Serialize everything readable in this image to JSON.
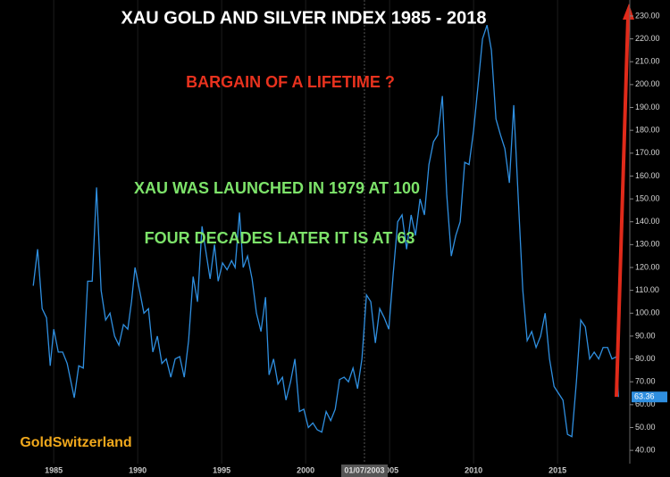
{
  "chart_data": {
    "type": "line",
    "title": "XAU GOLD AND SILVER INDEX   1985  - 2018",
    "annotations": [
      {
        "text": "BARGAIN OF A LIFETIME ?",
        "color": "#e8321e"
      },
      {
        "text": "XAU WAS LAUNCHED  IN 1979 AT 100",
        "color": "#7de36a"
      },
      {
        "text": "FOUR DECADES LATER IT IS AT 63",
        "color": "#7de36a"
      },
      {
        "text": "GoldSwitzerland",
        "color": "#f0a81c"
      }
    ],
    "crosshair": {
      "x": 2003.5,
      "label": "01/07/2003"
    },
    "series": [
      {
        "name": "XAU",
        "color": "#2f8fe0",
        "x": [
          1983.78,
          1984.04,
          1984.31,
          1984.57,
          1984.79,
          1985.0,
          1985.27,
          1985.53,
          1985.8,
          1986.22,
          1986.49,
          1986.76,
          1987.02,
          1987.29,
          1987.55,
          1987.82,
          1988.09,
          1988.35,
          1988.62,
          1988.88,
          1989.15,
          1989.41,
          1989.63,
          1989.84,
          1990.11,
          1990.37,
          1990.64,
          1990.9,
          1991.17,
          1991.44,
          1991.7,
          1991.97,
          1992.23,
          1992.5,
          1992.77,
          1993.03,
          1993.3,
          1993.56,
          1993.83,
          1994.1,
          1994.31,
          1994.57,
          1994.79,
          1995.05,
          1995.32,
          1995.59,
          1995.8,
          1996.06,
          1996.28,
          1996.54,
          1996.81,
          1997.07,
          1997.34,
          1997.61,
          1997.82,
          1998.09,
          1998.35,
          1998.62,
          1998.83,
          1999.1,
          1999.36,
          1999.63,
          1999.89,
          2000.16,
          2000.43,
          2000.69,
          2000.96,
          2001.22,
          2001.49,
          2001.76,
          2002.02,
          2002.29,
          2002.55,
          2002.82,
          2003.09,
          2003.35,
          2003.62,
          2003.88,
          2004.15,
          2004.41,
          2004.68,
          2004.95,
          2005.21,
          2005.48,
          2005.74,
          2006.01,
          2006.28,
          2006.54,
          2006.81,
          2007.07,
          2007.34,
          2007.61,
          2007.87,
          2008.14,
          2008.4,
          2008.67,
          2008.94,
          2009.2,
          2009.47,
          2009.73,
          2010.0,
          2010.27,
          2010.53,
          2010.8,
          2011.06,
          2011.33,
          2011.6,
          2011.86,
          2012.13,
          2012.39,
          2012.66,
          2012.93,
          2013.19,
          2013.46,
          2013.72,
          2013.99,
          2014.26,
          2014.52,
          2014.79,
          2015.05,
          2015.32,
          2015.59,
          2015.85,
          2016.12,
          2016.38,
          2016.65,
          2016.91,
          2017.18,
          2017.45,
          2017.71,
          2017.98,
          2018.24,
          2018.51,
          2018.62
        ],
        "values": [
          112,
          128,
          102,
          98,
          77,
          93,
          83,
          83,
          78,
          63,
          77,
          76,
          114,
          114,
          155,
          110,
          97,
          100,
          90,
          86,
          95,
          93,
          105,
          120,
          110,
          100,
          102,
          83,
          90,
          78,
          80,
          72,
          80,
          81,
          72,
          88,
          116,
          105,
          138,
          125,
          115,
          130,
          114,
          122,
          119,
          123,
          120,
          144,
          120,
          125,
          115,
          100,
          92,
          107,
          73,
          80,
          69,
          72,
          62,
          70,
          80,
          57,
          58,
          50,
          52,
          49,
          48,
          57,
          53,
          58,
          71,
          72,
          70,
          76,
          67,
          80,
          108,
          105,
          87,
          102,
          98,
          93,
          117,
          140,
          143,
          128,
          143,
          134,
          150,
          143,
          165,
          175,
          178,
          195,
          152,
          125,
          134,
          140,
          166,
          165,
          180,
          200,
          220,
          226,
          215,
          185,
          178,
          172,
          157,
          191,
          150,
          110,
          88,
          92,
          85,
          90,
          100,
          80,
          68,
          65,
          62,
          47,
          46,
          70,
          97,
          94,
          80,
          83,
          80,
          85,
          85,
          80,
          81,
          63.36
        ]
      }
    ],
    "xlim": [
      1981.8,
      2019.3
    ],
    "xticks": [
      1985,
      1990,
      1995,
      2000,
      2005,
      2010,
      2015
    ],
    "ylim": [
      34.2,
      237
    ],
    "yticks": [
      {
        "value": 40,
        "label": "40.00"
      },
      {
        "value": 50,
        "label": "50.00"
      },
      {
        "value": 60,
        "label": "60.00"
      },
      {
        "value": 70,
        "label": "70.00"
      },
      {
        "value": 80,
        "label": "80.00"
      },
      {
        "value": 90,
        "label": "90.00"
      },
      {
        "value": 100,
        "label": "100.00"
      },
      {
        "value": 110,
        "label": "110.00"
      },
      {
        "value": 120,
        "label": "120.00"
      },
      {
        "value": 130,
        "label": "130.00"
      },
      {
        "value": 140,
        "label": "140.00"
      },
      {
        "value": 150,
        "label": "150.00"
      },
      {
        "value": 160,
        "label": "160.00"
      },
      {
        "value": 170,
        "label": "170.00"
      },
      {
        "value": 180,
        "label": "180.00"
      },
      {
        "value": 190,
        "label": "190.00"
      },
      {
        "value": 200,
        "label": "200.00"
      },
      {
        "value": 210,
        "label": "210.00"
      },
      {
        "value": 220,
        "label": "220.00"
      },
      {
        "value": 230,
        "label": "230.00"
      }
    ],
    "grid": "x",
    "y_axis_side": "right"
  }
}
